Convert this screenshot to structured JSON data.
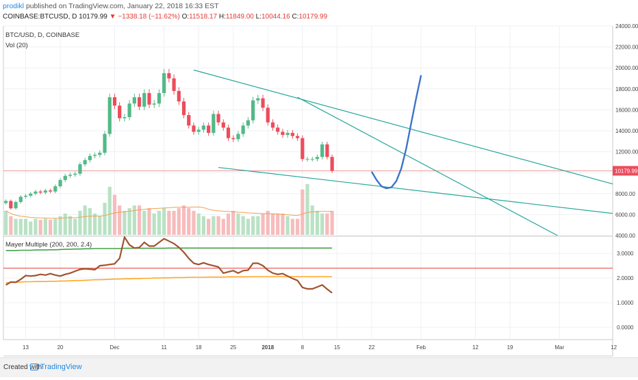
{
  "header": {
    "author": "prodikl",
    "published": "published on TradingView.com, January 22, 2018 16:33 EST",
    "symbol": "COINBASE:BTCUSD, D",
    "last": "10179.99",
    "change": "−1338.18 (−11.62%)",
    "open_label": "O:",
    "open": "11518.17",
    "high_label": "H:",
    "high": "11849.00",
    "low_label": "L:",
    "low": "10044.16",
    "close_label": "C:",
    "close": "10179.99"
  },
  "chart_data": [
    {
      "type": "candlestick",
      "title": "BTC/USD, D, COINBASE",
      "volume_label": "Vol (20)",
      "current_price_label": "10179.99",
      "ylim": [
        4000,
        24000
      ],
      "y_ticks": [
        "24000.00",
        "22000.00",
        "20000.00",
        "18000.00",
        "16000.00",
        "14000.00",
        "12000.00",
        "10000.00",
        "8000.00",
        "6000.00",
        "4000.00"
      ],
      "y_tick_values": [
        24000,
        22000,
        20000,
        18000,
        16000,
        14000,
        12000,
        10000,
        8000,
        6000,
        4000
      ],
      "x_ticks": [
        "13",
        "20",
        "Dec",
        "11",
        "18",
        "25",
        "2018",
        "8",
        "15",
        "22",
        "Feb",
        "12",
        "19",
        "Mar",
        "12"
      ],
      "x_tick_dates": [
        "2017-11-13",
        "2017-11-20",
        "2017-12-01",
        "2017-12-11",
        "2017-12-18",
        "2017-12-25",
        "2018-01-01",
        "2018-01-08",
        "2018-01-15",
        "2018-01-22",
        "2018-02-01",
        "2018-02-12",
        "2018-02-19",
        "2018-03-01",
        "2018-03-12"
      ],
      "candles": [
        {
          "o": 7100,
          "c": 7300
        },
        {
          "o": 7300,
          "c": 6600
        },
        {
          "o": 6600,
          "c": 7200
        },
        {
          "o": 7200,
          "c": 7700
        },
        {
          "o": 7700,
          "c": 7800
        },
        {
          "o": 7800,
          "c": 8000
        },
        {
          "o": 8000,
          "c": 8200
        },
        {
          "o": 8200,
          "c": 8100
        },
        {
          "o": 8100,
          "c": 8300
        },
        {
          "o": 8300,
          "c": 8200
        },
        {
          "o": 8200,
          "c": 8700
        },
        {
          "o": 8700,
          "c": 9300
        },
        {
          "o": 9300,
          "c": 9700
        },
        {
          "o": 9700,
          "c": 9800
        },
        {
          "o": 9800,
          "c": 9900
        },
        {
          "o": 9900,
          "c": 10800
        },
        {
          "o": 10800,
          "c": 11200
        },
        {
          "o": 11200,
          "c": 11600
        },
        {
          "o": 11600,
          "c": 11700
        },
        {
          "o": 11700,
          "c": 11900
        },
        {
          "o": 11900,
          "c": 13700
        },
        {
          "o": 13700,
          "c": 17200
        },
        {
          "o": 17200,
          "c": 16400
        },
        {
          "o": 16400,
          "c": 15200
        },
        {
          "o": 15200,
          "c": 15300
        },
        {
          "o": 15300,
          "c": 16600
        },
        {
          "o": 16600,
          "c": 17200
        },
        {
          "o": 17200,
          "c": 16300
        },
        {
          "o": 16300,
          "c": 17600
        },
        {
          "o": 17600,
          "c": 16500
        },
        {
          "o": 16500,
          "c": 16600
        },
        {
          "o": 16600,
          "c": 17600
        },
        {
          "o": 17600,
          "c": 19500
        },
        {
          "o": 19500,
          "c": 19000
        },
        {
          "o": 19000,
          "c": 17800
        },
        {
          "o": 17800,
          "c": 16800
        },
        {
          "o": 16800,
          "c": 15500
        },
        {
          "o": 15500,
          "c": 14500
        },
        {
          "o": 14500,
          "c": 13900
        },
        {
          "o": 13900,
          "c": 14100
        },
        {
          "o": 14100,
          "c": 14500
        },
        {
          "o": 14500,
          "c": 13800
        },
        {
          "o": 13800,
          "c": 15600
        },
        {
          "o": 15600,
          "c": 14800
        },
        {
          "o": 14800,
          "c": 14300
        },
        {
          "o": 14300,
          "c": 13300
        },
        {
          "o": 13300,
          "c": 13200
        },
        {
          "o": 13200,
          "c": 13700
        },
        {
          "o": 13700,
          "c": 14500
        },
        {
          "o": 14500,
          "c": 15000
        },
        {
          "o": 15000,
          "c": 16900
        },
        {
          "o": 16900,
          "c": 17100
        },
        {
          "o": 17100,
          "c": 16200
        },
        {
          "o": 16200,
          "c": 14800
        },
        {
          "o": 14800,
          "c": 14300
        },
        {
          "o": 14300,
          "c": 13900
        },
        {
          "o": 13900,
          "c": 13600
        },
        {
          "o": 13600,
          "c": 13800
        },
        {
          "o": 13800,
          "c": 13500
        },
        {
          "o": 13500,
          "c": 13300
        },
        {
          "o": 13300,
          "c": 11300
        },
        {
          "o": 11300,
          "c": 11300
        },
        {
          "o": 11300,
          "c": 11300
        },
        {
          "o": 11300,
          "c": 11500
        },
        {
          "o": 11500,
          "c": 12700
        },
        {
          "o": 12700,
          "c": 11500
        },
        {
          "o": 11500,
          "c": 10180
        }
      ],
      "volume_relative": [
        0.45,
        0.35,
        0.3,
        0.3,
        0.3,
        0.25,
        0.3,
        0.28,
        0.3,
        0.28,
        0.3,
        0.35,
        0.4,
        0.35,
        0.3,
        0.45,
        0.55,
        0.5,
        0.4,
        0.35,
        0.6,
        0.9,
        0.75,
        0.55,
        0.45,
        0.5,
        0.55,
        0.55,
        0.45,
        0.5,
        0.4,
        0.45,
        0.5,
        0.45,
        0.45,
        0.5,
        0.55,
        0.5,
        0.45,
        0.4,
        0.35,
        0.3,
        0.35,
        0.35,
        0.3,
        0.4,
        0.45,
        0.4,
        0.35,
        0.3,
        0.35,
        0.35,
        0.4,
        0.45,
        0.4,
        0.4,
        0.4,
        0.35,
        0.3,
        0.3,
        0.85,
        0.95,
        0.55,
        0.45,
        0.4,
        0.4,
        0.45
      ],
      "trendlines": [
        {
          "from": {
            "date": "2017-12-17",
            "y": 19800
          },
          "to": {
            "date": "2018-03-12",
            "y": 8900
          }
        },
        {
          "from": {
            "date": "2018-01-07",
            "y": 17200
          },
          "to": {
            "date": "2018-03-01",
            "y": 3900
          }
        },
        {
          "from": {
            "date": "2017-12-22",
            "y": 10500
          },
          "to": {
            "date": "2018-03-12",
            "y": 6100
          }
        }
      ],
      "horizontal_line": 10179.99,
      "projection": [
        {
          "date": "2018-01-22",
          "y": 10100
        },
        {
          "date": "2018-01-23",
          "y": 9300
        },
        {
          "date": "2018-01-24",
          "y": 8700
        },
        {
          "date": "2018-01-25",
          "y": 8500
        },
        {
          "date": "2018-01-26",
          "y": 8600
        },
        {
          "date": "2018-01-27",
          "y": 9200
        },
        {
          "date": "2018-01-28",
          "y": 10400
        },
        {
          "date": "2018-01-29",
          "y": 12300
        },
        {
          "date": "2018-01-30",
          "y": 14700
        },
        {
          "date": "2018-01-31",
          "y": 17100
        },
        {
          "date": "2018-02-01",
          "y": 19300
        }
      ]
    },
    {
      "type": "line",
      "title": "Mayer Multiple (200, 200, 2.4)",
      "ylim": [
        -0.5,
        3.7
      ],
      "y_ticks": [
        "3.0000",
        "2.0000",
        "1.0000",
        "0.0000"
      ],
      "y_tick_values": [
        3,
        2,
        1,
        0
      ],
      "x_ticks": [
        "13",
        "20",
        "Dec",
        "11",
        "18",
        "25",
        "2018",
        "8",
        "15",
        "22",
        "Feb",
        "12",
        "19",
        "Mar",
        "12"
      ],
      "x_tick_dates": [
        "2017-11-13",
        "2017-11-20",
        "2017-12-01",
        "2017-12-11",
        "2017-12-18",
        "2017-12-25",
        "2018-01-01",
        "2018-01-08",
        "2018-01-15",
        "2018-01-22",
        "2018-02-01",
        "2018-02-12",
        "2018-02-19",
        "2018-03-01",
        "2018-03-12"
      ],
      "series": [
        {
          "color": "#43a047",
          "values": [
            3.12,
            3.12,
            3.12,
            3.13,
            3.13,
            3.13,
            3.14,
            3.14,
            3.14,
            3.15,
            3.15,
            3.16,
            3.17,
            3.17,
            3.18,
            3.18,
            3.19,
            3.19,
            3.2,
            3.2,
            3.2,
            3.2,
            3.2,
            3.2,
            3.21,
            3.21,
            3.21,
            3.21,
            3.21,
            3.21,
            3.21,
            3.21,
            3.21,
            3.22,
            3.22,
            3.22,
            3.22,
            3.22,
            3.22,
            3.22,
            3.22,
            3.22,
            3.22,
            3.22,
            3.22,
            3.22,
            3.22,
            3.22,
            3.22,
            3.22,
            3.22,
            3.22,
            3.22,
            3.22,
            3.22,
            3.22,
            3.22,
            3.22,
            3.22,
            3.22,
            3.22,
            3.22,
            3.22,
            3.22,
            3.22,
            3.22,
            3.22
          ]
        },
        {
          "color": "#ffa726",
          "values": [
            1.8,
            1.82,
            1.83,
            1.84,
            1.85,
            1.85,
            1.86,
            1.86,
            1.86,
            1.87,
            1.87,
            1.88,
            1.88,
            1.89,
            1.9,
            1.9,
            1.91,
            1.92,
            1.93,
            1.93,
            1.94,
            1.95,
            1.96,
            1.96,
            1.97,
            1.97,
            1.98,
            1.98,
            1.99,
            1.99,
            2,
            2,
            2.01,
            2.01,
            2.02,
            2.02,
            2.02,
            2.03,
            2.03,
            2.03,
            2.03,
            2.04,
            2.04,
            2.04,
            2.04,
            2.05,
            2.05,
            2.05,
            2.05,
            2.05,
            2.06,
            2.06,
            2.06,
            2.06,
            2.06,
            2.06,
            2.06,
            2.06,
            2.06,
            2.06,
            2.06,
            2.06,
            2.06,
            2.06,
            2.06,
            2.06,
            2.06
          ]
        },
        {
          "color": "#a0522d",
          "values": [
            1.72,
            1.84,
            1.83,
            1.95,
            2.1,
            2.08,
            2.1,
            2.15,
            2.12,
            2.18,
            2.12,
            2.08,
            2.15,
            2.2,
            2.28,
            2.35,
            2.38,
            2.36,
            2.34,
            2.5,
            2.52,
            2.55,
            2.58,
            2.8,
            3.66,
            3.35,
            3.22,
            3.24,
            3.45,
            3.3,
            3.3,
            3.45,
            3.6,
            3.5,
            3.4,
            3.25,
            3.05,
            2.8,
            2.6,
            2.55,
            2.62,
            2.55,
            2.5,
            2.45,
            2.2,
            2.25,
            2.3,
            2.2,
            2.3,
            2.32,
            2.6,
            2.6,
            2.5,
            2.32,
            2.2,
            2.15,
            2.18,
            2.08,
            1.98,
            1.9,
            1.62,
            1.56,
            1.56,
            1.64,
            1.72,
            1.55,
            1.4
          ]
        }
      ],
      "threshold": 2.4
    }
  ],
  "footer": {
    "created_with": "Created with",
    "brand": "TradingView"
  }
}
